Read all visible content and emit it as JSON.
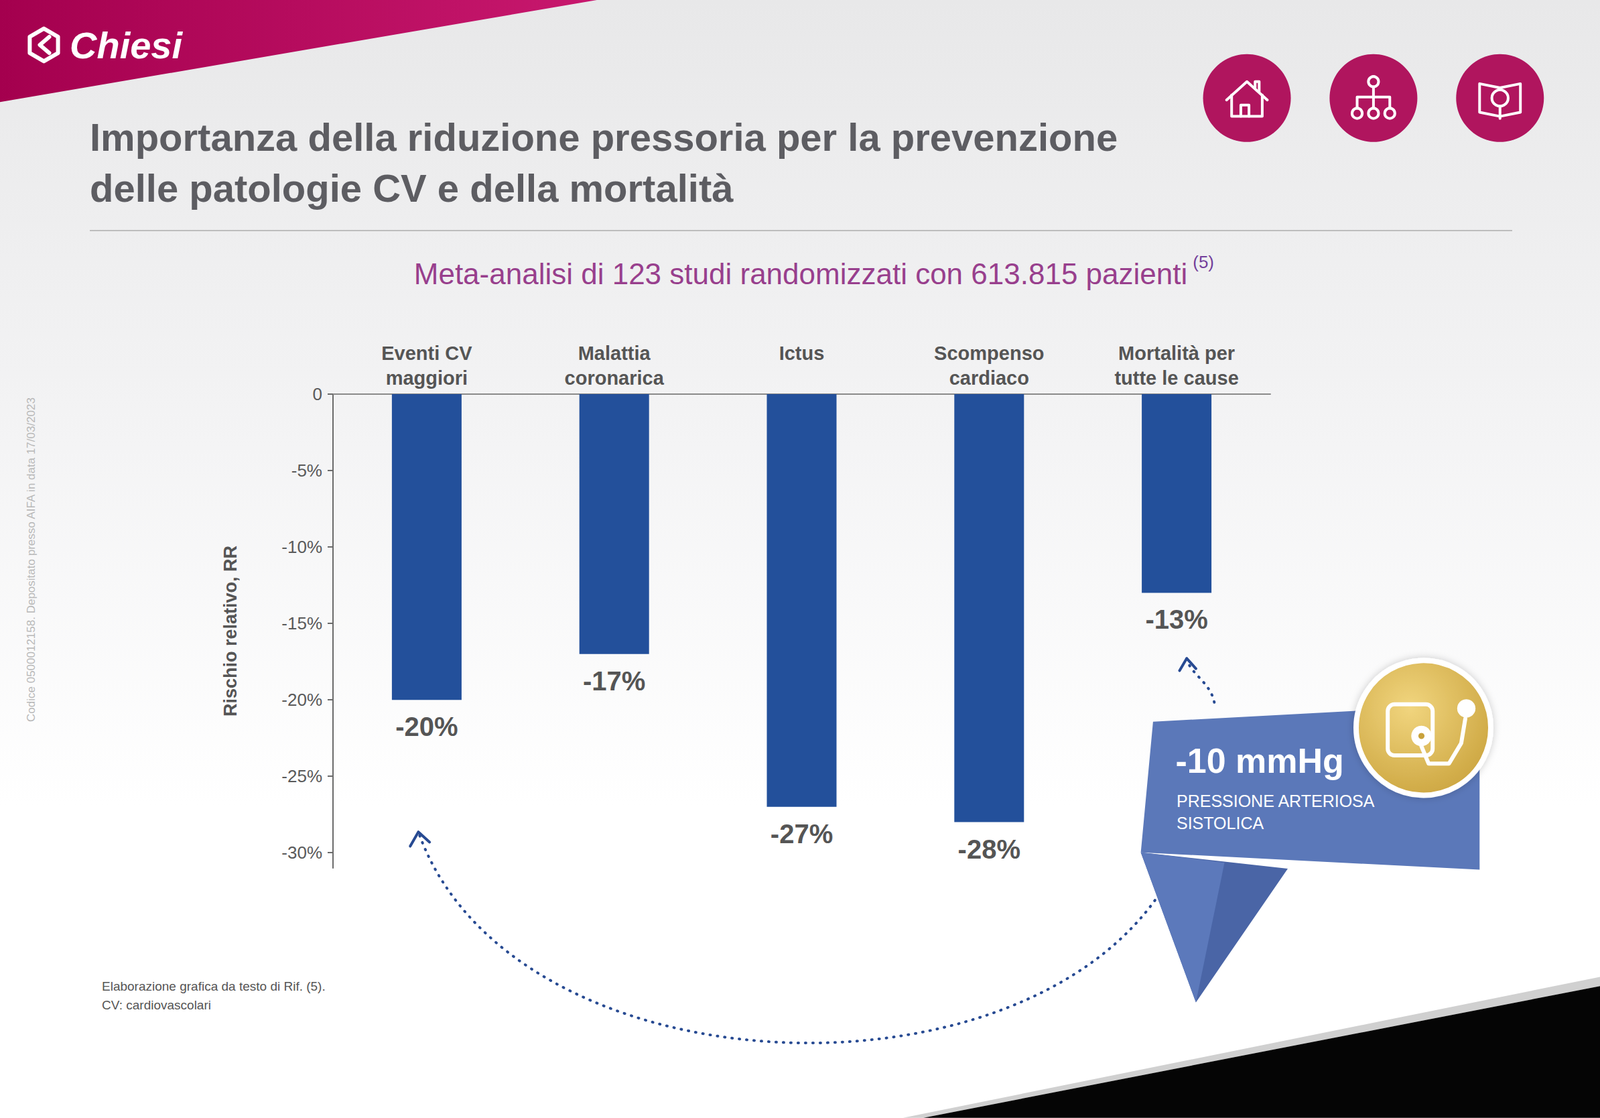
{
  "chart_data": {
    "type": "bar",
    "brand": "Chiesi",
    "title": "Importanza della riduzione pressoria per la prevenzione delle patologie CV e della mortalità",
    "subtitle": "Meta-analisi di 123 studi randomizzati con 613.815 pazienti",
    "subtitle_note": "(5)",
    "ylabel": "Rischio relativo, RR",
    "categories": [
      "Eventi CV\nmaggiori",
      "Malattia\ncoronarica",
      "Ictus",
      "Scompenso\ncardiaco",
      "Mortalità per\ntutte le cause"
    ],
    "values": [
      -20,
      -17,
      -27,
      -28,
      -13
    ],
    "value_labels": [
      "-20%",
      "-17%",
      "-27%",
      "-28%",
      "-13%"
    ],
    "color": "#23509b",
    "ylim": [
      -31,
      0
    ],
    "yticks": [
      0,
      {
        "value": -5,
        "label": "-5%"
      },
      {
        "value": -10,
        "label": "-10%"
      },
      {
        "value": -15,
        "label": "-15%"
      },
      {
        "value": -20,
        "label": "-20%"
      },
      {
        "value": -25,
        "label": "-25%"
      },
      {
        "value": -30,
        "label": "-30%"
      }
    ],
    "grid": false,
    "data_labels": true,
    "callout": {
      "value": "-10 mmHg",
      "text": "PRESSIONE ARTERIOSA SISTOLICA"
    },
    "footnotes": [
      "Elaborazione grafica da testo di Rif. (5).",
      "CV: cardiovascolari"
    ],
    "side_note": "Codice 0500012158. Depositato presso AIFA in data 17/03/2023"
  }
}
